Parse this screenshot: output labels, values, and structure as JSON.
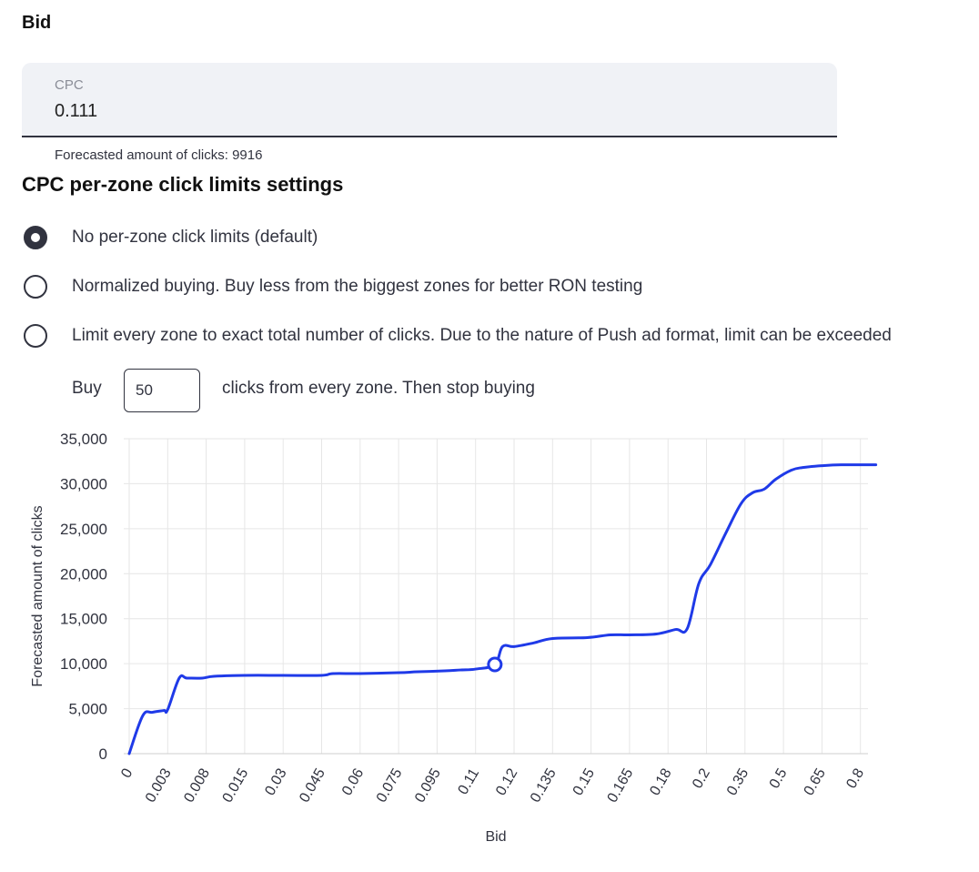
{
  "bid_section": {
    "title": "Bid"
  },
  "cpc": {
    "label": "CPC",
    "value": "0.111"
  },
  "forecast_text": "Forecasted amount of clicks: 9916",
  "limits": {
    "title": "CPC per-zone click limits settings",
    "options": [
      {
        "label": "No per-zone click limits (default)",
        "selected": true
      },
      {
        "label": "Normalized buying. Buy less from the biggest zones for better RON testing",
        "selected": false
      },
      {
        "label": "Limit every zone to exact total number of clicks. Due to the nature of Push ad format, limit can be exceeded",
        "selected": false
      }
    ],
    "buy_prefix": "Buy",
    "buy_value": "50",
    "buy_suffix": "clicks from every zone. Then stop buying"
  },
  "colors": {
    "line": "#1f3ae8",
    "grid": "#e6e6e6"
  },
  "chart_data": {
    "type": "line",
    "xlabel": "Bid",
    "ylabel": "Forecasted amount of clicks",
    "x_scale": "categorical",
    "x_ticks": [
      "0",
      "0.003",
      "0.008",
      "0.015",
      "0.03",
      "0.045",
      "0.06",
      "0.075",
      "0.095",
      "0.11",
      "0.12",
      "0.135",
      "0.15",
      "0.165",
      "0.18",
      "0.2",
      "0.35",
      "0.5",
      "0.65",
      "0.8"
    ],
    "y_ticks": [
      "0",
      "5,000",
      "10,000",
      "15,000",
      "20,000",
      "25,000",
      "30,000",
      "35,000"
    ],
    "ylim": [
      0,
      35000
    ],
    "grid": true,
    "series": [
      {
        "points": [
          [
            0,
            0
          ],
          [
            0.35,
            4200
          ],
          [
            0.6,
            4600
          ],
          [
            0.9,
            4800
          ],
          [
            1.0,
            4900
          ],
          [
            1.3,
            8400
          ],
          [
            1.5,
            8400
          ],
          [
            1.9,
            8400
          ],
          [
            2.2,
            8600
          ],
          [
            3.0,
            8700
          ],
          [
            4.0,
            8700
          ],
          [
            5.0,
            8700
          ],
          [
            5.3,
            8900
          ],
          [
            6.0,
            8900
          ],
          [
            7.0,
            9000
          ],
          [
            7.5,
            9100
          ],
          [
            8.2,
            9200
          ],
          [
            8.6,
            9300
          ],
          [
            9.0,
            9400
          ],
          [
            9.5,
            9916
          ],
          [
            9.7,
            11900
          ],
          [
            10.0,
            11900
          ],
          [
            10.5,
            12300
          ],
          [
            11.0,
            12800
          ],
          [
            11.9,
            12900
          ],
          [
            12.5,
            13200
          ],
          [
            13.0,
            13200
          ],
          [
            13.7,
            13300
          ],
          [
            14.2,
            13800
          ],
          [
            14.5,
            13900
          ],
          [
            14.8,
            18900
          ],
          [
            15.1,
            21000
          ],
          [
            15.5,
            24500
          ],
          [
            15.9,
            27800
          ],
          [
            16.2,
            29000
          ],
          [
            16.5,
            29400
          ],
          [
            16.8,
            30500
          ],
          [
            17.2,
            31500
          ],
          [
            17.5,
            31800
          ],
          [
            18.0,
            32000
          ],
          [
            18.5,
            32100
          ],
          [
            19.4,
            32100
          ]
        ],
        "marker": {
          "x": 9.5,
          "y": 9916,
          "x_label": "0.111"
        }
      }
    ]
  }
}
